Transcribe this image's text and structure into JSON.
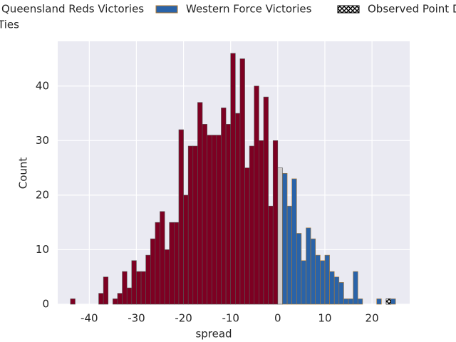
{
  "chart_data": {
    "type": "histogram",
    "xlabel": "spread",
    "ylabel": "Count",
    "bins": [
      -44,
      -43,
      -42,
      -41,
      -40,
      -39,
      -38,
      -37,
      -36,
      -35,
      -34,
      -33,
      -32,
      -31,
      -30,
      -29,
      -28,
      -27,
      -26,
      -25,
      -24,
      -23,
      -22,
      -21,
      -20,
      -19,
      -18,
      -17,
      -16,
      -15,
      -14,
      -13,
      -12,
      -11,
      -10,
      -9,
      -8,
      -7,
      -6,
      -5,
      -4,
      -3,
      -2,
      -1,
      0,
      1,
      2,
      3,
      4,
      5,
      6,
      7,
      8,
      9,
      10,
      11,
      12,
      13,
      14,
      15,
      16,
      17,
      18,
      19,
      20,
      21,
      22,
      23,
      24,
      25
    ],
    "series": [
      {
        "name": "Queensland Reds Victories",
        "color": "#7d0022",
        "values": [
          1,
          0,
          0,
          0,
          0,
          0,
          2,
          5,
          0,
          1,
          2,
          6,
          3,
          8,
          6,
          6,
          9,
          12,
          15,
          17,
          10,
          15,
          15,
          32,
          20,
          29,
          29,
          37,
          33,
          31,
          31,
          31,
          36,
          33,
          46,
          35,
          45,
          25,
          29,
          40,
          30,
          38,
          18,
          30,
          0,
          0,
          0,
          0,
          0,
          0,
          0,
          0,
          0,
          0,
          0,
          0,
          0,
          0,
          0,
          0,
          0,
          0,
          0,
          0,
          0,
          0,
          0,
          0,
          0
        ]
      },
      {
        "name": "Western Force Victories",
        "color": "#2a63a8",
        "values": [
          0,
          0,
          0,
          0,
          0,
          0,
          0,
          0,
          0,
          0,
          0,
          0,
          0,
          0,
          0,
          0,
          0,
          0,
          0,
          0,
          0,
          0,
          0,
          0,
          0,
          0,
          0,
          0,
          0,
          0,
          0,
          0,
          0,
          0,
          0,
          0,
          0,
          0,
          0,
          0,
          0,
          0,
          0,
          0,
          0,
          24,
          18,
          23,
          13,
          8,
          14,
          12,
          9,
          8,
          9,
          6,
          5,
          4,
          1,
          1,
          6,
          1,
          0,
          0,
          0,
          1,
          0,
          0,
          1
        ]
      },
      {
        "name": "Observed Point D",
        "color": "#000000",
        "hatch": true,
        "values": [
          0,
          0,
          0,
          0,
          0,
          0,
          0,
          0,
          0,
          0,
          0,
          0,
          0,
          0,
          0,
          0,
          0,
          0,
          0,
          0,
          0,
          0,
          0,
          0,
          0,
          0,
          0,
          0,
          0,
          0,
          0,
          0,
          0,
          0,
          0,
          0,
          0,
          0,
          0,
          0,
          0,
          0,
          0,
          0,
          0,
          0,
          0,
          0,
          0,
          0,
          0,
          0,
          0,
          0,
          0,
          0,
          0,
          0,
          0,
          0,
          0,
          0,
          0,
          0,
          0,
          0,
          0,
          1,
          0
        ]
      },
      {
        "name": "Ties",
        "color": "#d0cccc",
        "values": [
          0,
          0,
          0,
          0,
          0,
          0,
          0,
          0,
          0,
          0,
          0,
          0,
          0,
          0,
          0,
          0,
          0,
          0,
          0,
          0,
          0,
          0,
          0,
          0,
          0,
          0,
          0,
          0,
          0,
          0,
          0,
          0,
          0,
          0,
          0,
          0,
          0,
          0,
          0,
          0,
          0,
          0,
          0,
          0,
          25,
          0,
          0,
          0,
          0,
          0,
          0,
          0,
          0,
          0,
          0,
          0,
          0,
          0,
          0,
          0,
          0,
          0,
          0,
          0,
          0,
          0,
          0,
          0,
          0
        ]
      }
    ],
    "xlim": [
      -46.7,
      28.0
    ],
    "ylim": [
      0,
      48.2
    ],
    "xticks": [
      -40,
      -30,
      -20,
      -10,
      0,
      10,
      20
    ],
    "yticks": [
      0,
      10,
      20,
      30,
      40
    ],
    "grid": true
  }
}
